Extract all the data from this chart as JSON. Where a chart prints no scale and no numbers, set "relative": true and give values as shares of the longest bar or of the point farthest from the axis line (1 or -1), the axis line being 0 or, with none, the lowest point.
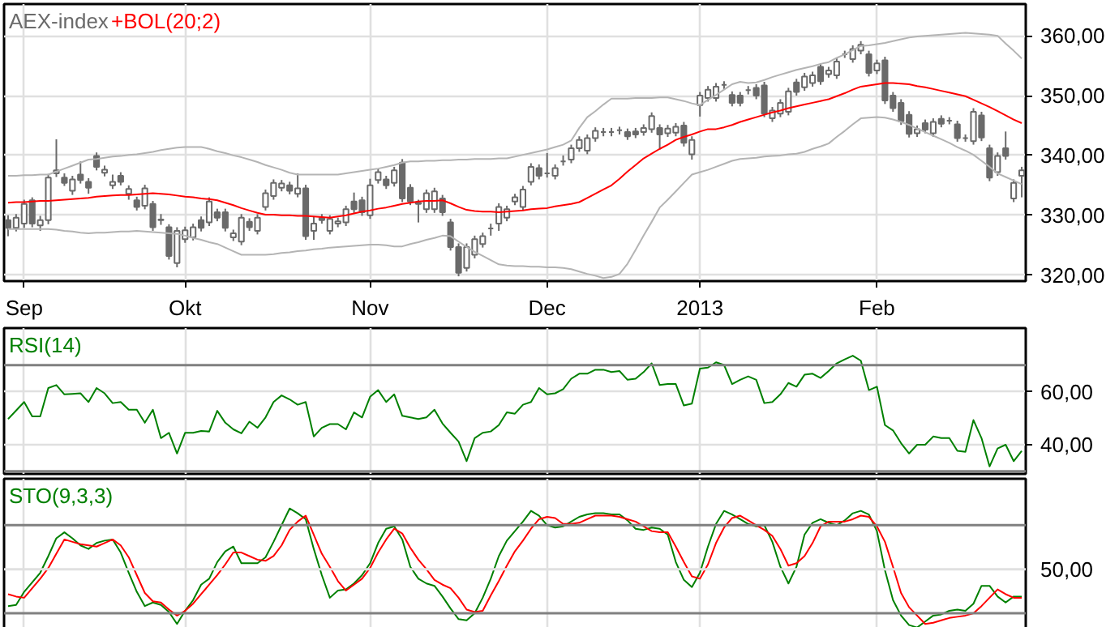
{
  "chart_data": [
    {
      "type": "candlestick",
      "ylim": [
        319,
        365.3
      ],
      "categories": [
        null,
        null,
        "Sep",
        null,
        null,
        null,
        null,
        null,
        null,
        null,
        null,
        null,
        null,
        null,
        null,
        null,
        null,
        null,
        null,
        null,
        null,
        null,
        "Okt",
        null,
        null,
        null,
        null,
        null,
        null,
        null,
        null,
        null,
        null,
        null,
        null,
        null,
        null,
        null,
        null,
        null,
        null,
        null,
        null,
        null,
        null,
        "Nov",
        null,
        null,
        null,
        null,
        null,
        null,
        null,
        null,
        null,
        null,
        null,
        null,
        null,
        null,
        null,
        null,
        null,
        null,
        null,
        null,
        null,
        "Dec",
        null,
        null,
        null,
        null,
        null,
        null,
        null,
        null,
        null,
        null,
        null,
        null,
        null,
        null,
        null,
        null,
        null,
        null,
        "2013",
        null,
        null,
        null,
        null,
        null,
        null,
        null,
        null,
        null,
        null,
        null,
        null,
        null,
        null,
        null,
        null,
        null,
        null,
        null,
        null,
        null,
        "Feb",
        null,
        null,
        null,
        null,
        null,
        null,
        null,
        null,
        null,
        null,
        null,
        null,
        null,
        null,
        null,
        null,
        null,
        null
      ],
      "yticks": [
        {
          "value": 320,
          "label": "320,00"
        },
        {
          "value": 330,
          "label": "330,00"
        },
        {
          "value": 340,
          "label": "340,00"
        },
        {
          "value": 350,
          "label": "350,00"
        },
        {
          "value": 360,
          "label": "360,00"
        }
      ],
      "grid": true,
      "legend": "top left",
      "series": [
        {
          "type": "candlestick",
          "name": "AEX-index",
          "color": "#6a6a6a",
          "ohlc": [
            [
              329.2,
              330.0,
              326.5,
              327.9
            ],
            [
              327.9,
              330.2,
              327.3,
              329.6
            ],
            [
              328.6,
              332.6,
              327.9,
              331.9
            ],
            [
              332.5,
              333.0,
              328.0,
              328.6
            ],
            [
              328.3,
              329.9,
              327.4,
              329.2
            ],
            [
              329.2,
              336.9,
              328.5,
              336.3
            ],
            [
              337.0,
              342.7,
              336.4,
              337.5
            ],
            [
              336.3,
              337.0,
              334.9,
              335.4
            ],
            [
              334.1,
              336.6,
              333.4,
              336.0
            ],
            [
              336.8,
              339.0,
              335.3,
              335.9
            ],
            [
              335.6,
              336.2,
              333.6,
              334.6
            ],
            [
              339.9,
              340.5,
              337.5,
              338.1
            ],
            [
              337.1,
              338.3,
              336.5,
              337.6
            ],
            [
              335.0,
              336.8,
              334.4,
              335.6
            ],
            [
              336.6,
              337.2,
              335.0,
              335.6
            ],
            [
              333.6,
              335.0,
              332.6,
              334.4
            ],
            [
              332.5,
              333.1,
              330.8,
              331.4
            ],
            [
              331.6,
              335.1,
              331.0,
              334.5
            ],
            [
              331.9,
              332.4,
              327.4,
              328.0
            ],
            [
              329.3,
              330.2,
              328.4,
              329.2
            ],
            [
              328.0,
              328.5,
              322.6,
              323.2
            ],
            [
              322.0,
              328.0,
              321.3,
              327.4
            ],
            [
              326.0,
              328.1,
              325.4,
              327.5
            ],
            [
              326.3,
              328.6,
              325.8,
              328.0
            ],
            [
              329.2,
              329.8,
              327.3,
              327.9
            ],
            [
              328.8,
              333.0,
              328.2,
              332.3
            ],
            [
              330.5,
              331.1,
              329.0,
              329.6
            ],
            [
              330.5,
              331.1,
              327.3,
              327.9
            ],
            [
              326.3,
              327.6,
              325.7,
              327.0
            ],
            [
              325.6,
              330.2,
              325.0,
              329.6
            ],
            [
              328.9,
              329.5,
              327.4,
              328.0
            ],
            [
              327.4,
              330.2,
              326.8,
              329.6
            ],
            [
              331.4,
              334.3,
              330.8,
              333.7
            ],
            [
              333.2,
              336.0,
              332.6,
              335.4
            ],
            [
              334.6,
              335.9,
              334.0,
              335.3
            ],
            [
              335.0,
              335.6,
              333.5,
              334.1
            ],
            [
              333.6,
              337.0,
              333.0,
              334.5
            ],
            [
              334.5,
              335.1,
              325.9,
              326.5
            ],
            [
              327.4,
              329.8,
              325.9,
              328.6
            ],
            [
              329.6,
              330.2,
              328.6,
              329.2
            ],
            [
              327.4,
              330.0,
              326.8,
              329.4
            ],
            [
              328.6,
              329.6,
              328.0,
              329.0
            ],
            [
              328.8,
              331.6,
              328.2,
              331.0
            ],
            [
              332.3,
              333.8,
              330.4,
              331.0
            ],
            [
              332.5,
              333.1,
              329.9,
              330.5
            ],
            [
              330.0,
              336.1,
              329.4,
              335.0
            ],
            [
              335.9,
              337.8,
              335.3,
              337.2
            ],
            [
              336.0,
              336.6,
              334.4,
              335.0
            ],
            [
              335.4,
              338.1,
              334.8,
              337.5
            ],
            [
              338.8,
              339.4,
              332.2,
              332.8
            ],
            [
              334.6,
              335.2,
              331.7,
              332.3
            ],
            [
              332.1,
              332.6,
              328.8,
              331.9
            ],
            [
              331.0,
              334.3,
              330.4,
              333.7
            ],
            [
              331.0,
              334.6,
              330.4,
              334.0
            ],
            [
              332.8,
              333.4,
              329.9,
              330.5
            ],
            [
              328.8,
              329.4,
              324.1,
              324.7
            ],
            [
              324.7,
              325.3,
              319.8,
              320.4
            ],
            [
              321.2,
              325.3,
              320.6,
              324.7
            ],
            [
              323.4,
              326.6,
              322.8,
              326.0
            ],
            [
              325.2,
              327.1,
              324.6,
              326.5
            ],
            [
              327.8,
              328.6,
              326.6,
              327.8
            ],
            [
              328.6,
              332.0,
              327.4,
              331.4
            ],
            [
              329.6,
              331.6,
              329.0,
              331.0
            ],
            [
              332.3,
              333.6,
              331.7,
              333.0
            ],
            [
              331.4,
              334.9,
              330.8,
              334.3
            ],
            [
              335.6,
              338.7,
              335.0,
              338.1
            ],
            [
              337.9,
              338.5,
              336.0,
              336.6
            ],
            [
              337.0,
              340.4,
              336.3,
              337.0
            ],
            [
              336.6,
              338.5,
              336.0,
              337.9
            ],
            [
              339.0,
              340.0,
              338.3,
              339.0
            ],
            [
              339.3,
              341.8,
              338.7,
              341.2
            ],
            [
              341.2,
              343.2,
              340.6,
              342.6
            ],
            [
              340.8,
              343.5,
              340.2,
              342.9
            ],
            [
              342.9,
              344.7,
              342.3,
              344.1
            ],
            [
              343.9,
              344.6,
              343.2,
              343.9
            ],
            [
              343.9,
              344.6,
              343.2,
              343.9
            ],
            [
              344.2,
              344.8,
              343.5,
              344.2
            ],
            [
              343.9,
              344.5,
              342.6,
              343.2
            ],
            [
              344.0,
              344.6,
              342.9,
              343.5
            ],
            [
              343.9,
              345.2,
              343.3,
              344.6
            ],
            [
              344.4,
              347.2,
              343.8,
              346.6
            ],
            [
              344.6,
              345.2,
              341.0,
              343.5
            ],
            [
              343.7,
              345.1,
              343.1,
              344.5
            ],
            [
              343.8,
              345.4,
              343.2,
              344.8
            ],
            [
              345.0,
              345.6,
              341.5,
              342.1
            ],
            [
              340.2,
              343.2,
              339.3,
              342.6
            ],
            [
              348.4,
              350.6,
              346.5,
              350.0
            ],
            [
              349.6,
              351.6,
              349.0,
              351.0
            ],
            [
              349.6,
              352.1,
              349.0,
              351.5
            ],
            [
              351.8,
              352.4,
              351.1,
              351.8
            ],
            [
              350.1,
              350.7,
              348.2,
              348.8
            ],
            [
              350.0,
              350.6,
              348.2,
              348.8
            ],
            [
              350.9,
              351.6,
              350.2,
              350.9
            ],
            [
              351.3,
              351.9,
              349.4,
              350.0
            ],
            [
              351.7,
              352.3,
              346.4,
              347.0
            ],
            [
              346.2,
              348.1,
              345.6,
              347.5
            ],
            [
              347.0,
              349.4,
              346.4,
              348.8
            ],
            [
              347.3,
              351.3,
              346.7,
              350.7
            ],
            [
              352.2,
              352.8,
              350.0,
              350.6
            ],
            [
              351.4,
              353.8,
              350.8,
              353.2
            ],
            [
              352.1,
              354.0,
              351.5,
              353.4
            ],
            [
              354.8,
              355.4,
              351.8,
              352.4
            ],
            [
              353.6,
              354.8,
              353.0,
              354.2
            ],
            [
              353.4,
              356.3,
              352.8,
              355.7
            ],
            [
              356.9,
              357.5,
              356.3,
              356.9
            ],
            [
              356.1,
              358.4,
              355.5,
              357.8
            ],
            [
              357.5,
              359.1,
              356.9,
              358.5
            ],
            [
              356.9,
              357.5,
              353.2,
              353.8
            ],
            [
              354.2,
              356.0,
              353.6,
              355.4
            ],
            [
              355.9,
              356.5,
              348.6,
              349.2
            ],
            [
              350.0,
              350.6,
              347.3,
              347.9
            ],
            [
              348.8,
              349.4,
              345.1,
              345.7
            ],
            [
              346.8,
              347.4,
              343.0,
              343.6
            ],
            [
              343.7,
              345.0,
              343.1,
              344.4
            ],
            [
              345.4,
              346.0,
              343.7,
              344.3
            ],
            [
              343.7,
              346.2,
              343.1,
              345.6
            ],
            [
              346.1,
              346.7,
              344.7,
              345.3
            ],
            [
              345.8,
              346.4,
              345.2,
              345.8
            ],
            [
              345.2,
              345.8,
              342.3,
              342.9
            ],
            [
              342.9,
              343.5,
              342.3,
              342.9
            ],
            [
              342.4,
              347.9,
              341.8,
              347.3
            ],
            [
              346.7,
              347.3,
              342.4,
              343.0
            ],
            [
              341.2,
              341.8,
              335.7,
              336.3
            ],
            [
              337.2,
              340.5,
              336.6,
              339.9
            ],
            [
              341.2,
              344.0,
              339.3,
              339.9
            ],
            [
              332.8,
              336.0,
              332.2,
              335.4
            ],
            [
              336.6,
              338.1,
              333.0,
              337.5
            ]
          ]
        },
        {
          "type": "line",
          "color": "#b4b4b4",
          "values": [
            336.6,
            336.6,
            336.7,
            336.7,
            336.8,
            336.8,
            337.3,
            337.8,
            338.3,
            338.8,
            339.3,
            339.4,
            339.6,
            339.8,
            339.9,
            340.1,
            340.2,
            340.4,
            340.6,
            340.9,
            341.1,
            341.3,
            341.4,
            341.4,
            341.4,
            341.1,
            340.7,
            340.4,
            340.0,
            339.7,
            339.3,
            338.9,
            338.4,
            338.0,
            337.6,
            337.1,
            336.8,
            336.8,
            336.8,
            336.8,
            336.8,
            336.8,
            337.0,
            337.2,
            337.4,
            337.6,
            337.8,
            338.1,
            338.4,
            338.8,
            339.0,
            339.0,
            339.1,
            339.1,
            339.2,
            339.2,
            339.3,
            339.3,
            339.4,
            339.4,
            339.4,
            339.5,
            339.5,
            339.8,
            340.1,
            340.4,
            340.7,
            341.0,
            341.4,
            341.8,
            342.5,
            344.6,
            346.4,
            347.4,
            348.5,
            349.5,
            349.5,
            349.5,
            349.6,
            349.6,
            349.6,
            349.7,
            349.7,
            349.4,
            349.1,
            348.7,
            348.4,
            349.3,
            350.1,
            351.0,
            351.9,
            352.3,
            352.1,
            352.2,
            352.6,
            353.1,
            353.5,
            353.9,
            354.3,
            354.6,
            354.9,
            355.3,
            355.6,
            356.3,
            356.9,
            357.6,
            358.3,
            358.4,
            358.6,
            358.8,
            359.1,
            359.4,
            359.7,
            359.9,
            360.0,
            360.1,
            360.2,
            360.3,
            360.4,
            360.5,
            360.4,
            360.3,
            360.2,
            360.0,
            358.7,
            357.5,
            356.2
          ]
        },
        {
          "type": "line",
          "name": "+BOL(20;2)",
          "color": "#ff0000",
          "values": [
            332.1,
            332.2,
            332.2,
            332.3,
            332.4,
            332.4,
            332.5,
            332.6,
            332.7,
            332.8,
            332.9,
            333.1,
            333.2,
            333.3,
            333.4,
            333.4,
            333.5,
            333.6,
            333.7,
            333.6,
            333.5,
            333.3,
            333.1,
            333.0,
            332.8,
            332.7,
            332.5,
            332.1,
            331.7,
            331.2,
            330.8,
            330.4,
            330.1,
            330.1,
            330.0,
            330.0,
            329.9,
            329.9,
            329.8,
            329.7,
            329.6,
            329.8,
            330.0,
            330.3,
            330.6,
            330.8,
            331.1,
            331.3,
            331.6,
            331.9,
            332.1,
            332.3,
            332.4,
            332.4,
            332.5,
            332.0,
            331.4,
            330.9,
            330.7,
            330.6,
            330.6,
            330.5,
            330.6,
            330.7,
            330.8,
            331.0,
            331.1,
            331.2,
            331.5,
            331.7,
            331.9,
            332.2,
            332.9,
            333.6,
            334.3,
            335.0,
            336.1,
            337.3,
            338.4,
            339.5,
            340.3,
            341.1,
            341.8,
            342.6,
            343.1,
            343.5,
            344.0,
            344.4,
            344.4,
            344.7,
            345.1,
            345.6,
            346.0,
            346.4,
            346.8,
            347.2,
            347.5,
            347.9,
            348.2,
            348.5,
            348.8,
            349.1,
            349.4,
            349.9,
            350.4,
            351.0,
            351.5,
            351.7,
            351.9,
            352.1,
            352.1,
            352.0,
            351.9,
            351.6,
            351.4,
            351.1,
            350.8,
            350.5,
            350.2,
            349.9,
            349.3,
            348.7,
            348.1,
            347.4,
            346.7,
            346.0,
            345.4
          ]
        },
        {
          "type": "line",
          "color": "#b4b4b4",
          "values": [
            327.7,
            327.7,
            327.7,
            327.7,
            327.7,
            327.7,
            327.6,
            327.4,
            327.3,
            327.1,
            327.0,
            327.1,
            327.1,
            327.2,
            327.3,
            327.3,
            327.4,
            327.3,
            327.2,
            327.1,
            327.0,
            326.9,
            326.6,
            326.2,
            325.9,
            325.5,
            325.2,
            324.6,
            324.0,
            323.4,
            323.4,
            323.4,
            323.4,
            323.5,
            323.7,
            323.8,
            324.0,
            324.1,
            324.3,
            324.4,
            324.6,
            324.7,
            324.8,
            324.9,
            325.0,
            325.1,
            325.1,
            325.0,
            324.8,
            324.8,
            325.2,
            325.5,
            325.9,
            326.2,
            326.6,
            326.5,
            325.6,
            324.7,
            323.9,
            323.2,
            322.5,
            321.8,
            321.6,
            321.5,
            321.5,
            321.4,
            321.4,
            321.3,
            321.3,
            321.2,
            321.0,
            320.6,
            320.2,
            319.9,
            319.5,
            319.7,
            320.2,
            321.9,
            324.2,
            326.6,
            328.9,
            331.3,
            332.6,
            334.0,
            335.4,
            336.8,
            337.2,
            337.6,
            338.1,
            338.6,
            339.1,
            339.4,
            339.5,
            339.6,
            339.8,
            339.9,
            340.0,
            340.2,
            340.3,
            340.6,
            341.1,
            341.5,
            342.0,
            343.1,
            344.1,
            345.2,
            346.2,
            346.3,
            346.4,
            346.3,
            346.0,
            345.6,
            345.1,
            344.5,
            343.9,
            343.3,
            342.7,
            342.1,
            341.4,
            340.8,
            340.1,
            339.1,
            338.1,
            337.0,
            336.4,
            335.8,
            335.2
          ]
        }
      ]
    },
    {
      "type": "line",
      "ylim": [
        29,
        84
      ],
      "tick_labels": "y",
      "categories": [
        null,
        null,
        null,
        null,
        null,
        null,
        null,
        null,
        null,
        null,
        null,
        null,
        null,
        null,
        null,
        null,
        null,
        null,
        null,
        null,
        null,
        null,
        null,
        null,
        null,
        null,
        null,
        null,
        null,
        null,
        null,
        null,
        null,
        null,
        null,
        null,
        null,
        null,
        null,
        null,
        null,
        null,
        null,
        null,
        null,
        null,
        null,
        null,
        null,
        null,
        null,
        null,
        null,
        null,
        null,
        null,
        null,
        null,
        null,
        null,
        null,
        null,
        null,
        null,
        null,
        null,
        null,
        null,
        null,
        null,
        null,
        null,
        null,
        null,
        null,
        null,
        null,
        null,
        null,
        null,
        null,
        null,
        null,
        null,
        null,
        null,
        null,
        null,
        null,
        null,
        null,
        null,
        null,
        null,
        null,
        null,
        null,
        null,
        null,
        null,
        null,
        null,
        null,
        null,
        null,
        null,
        null,
        null,
        null,
        null,
        null,
        null,
        null,
        null,
        null,
        null,
        null,
        null,
        null,
        null,
        null,
        null,
        null,
        null,
        null,
        null,
        null
      ],
      "yticks": [
        {
          "value": 40,
          "label": "40,00"
        },
        {
          "value": 60,
          "label": "60,00"
        }
      ],
      "grid": true,
      "legend": "top left",
      "ref_lines": [
        {
          "axis": "y",
          "value": 70,
          "color": "#808080"
        },
        {
          "axis": "y",
          "value": 30,
          "color": "#808080"
        }
      ],
      "series": [
        {
          "name": "RSI(14)",
          "color": "#008000",
          "values": [
            49.7,
            52.9,
            56.1,
            50.7,
            50.7,
            61.4,
            62.5,
            59.0,
            59.2,
            59.4,
            56.1,
            61.4,
            59.4,
            55.7,
            56.1,
            53.2,
            53.2,
            48.3,
            53.2,
            42.5,
            44.5,
            36.7,
            44.5,
            44.5,
            45.2,
            45.0,
            52.8,
            48.3,
            45.8,
            44.3,
            48.7,
            46.4,
            50.3,
            56.1,
            58.6,
            57.1,
            55.1,
            56.1,
            43.1,
            46.4,
            47.8,
            47.8,
            45.8,
            52.2,
            50.3,
            58.1,
            60.6,
            56.1,
            59.0,
            50.9,
            50.3,
            49.7,
            50.3,
            53.2,
            48.0,
            44.5,
            41.2,
            33.8,
            42.5,
            44.5,
            45.0,
            47.4,
            52.2,
            51.7,
            55.1,
            56.1,
            61.4,
            59.0,
            59.4,
            61.0,
            64.9,
            66.8,
            66.8,
            68.3,
            68.3,
            67.4,
            67.8,
            64.5,
            64.9,
            67.4,
            70.7,
            62.5,
            62.9,
            62.9,
            54.8,
            55.5,
            68.7,
            69.1,
            71.1,
            70.1,
            62.9,
            64.5,
            65.8,
            64.5,
            55.7,
            56.1,
            59.0,
            63.3,
            61.9,
            66.4,
            66.8,
            65.2,
            67.8,
            70.7,
            72.2,
            73.6,
            71.7,
            60.6,
            61.9,
            47.4,
            45.4,
            40.6,
            36.7,
            40.0,
            40.0,
            43.1,
            42.5,
            42.5,
            37.7,
            37.3,
            49.3,
            42.5,
            31.8,
            38.6,
            40.0,
            33.8,
            37.7
          ]
        }
      ]
    },
    {
      "type": "line",
      "relative": true,
      "tick_labels": false,
      "categories": [
        null,
        null,
        null,
        null,
        null,
        null,
        null,
        null,
        null,
        null,
        null,
        null,
        null,
        null,
        null,
        null,
        null,
        null,
        null,
        null,
        null,
        null,
        null,
        null,
        null,
        null,
        null,
        null,
        null,
        null,
        null,
        null,
        null,
        null,
        null,
        null,
        null,
        null,
        null,
        null,
        null,
        null,
        null,
        null,
        null,
        null,
        null,
        null,
        null,
        null,
        null,
        null,
        null,
        null,
        null,
        null,
        null,
        null,
        null,
        null,
        null,
        null,
        null,
        null,
        null,
        null,
        null,
        null,
        null,
        null,
        null,
        null,
        null,
        null,
        null,
        null,
        null,
        null,
        null,
        null,
        null,
        null,
        null,
        null,
        null,
        null,
        null,
        null,
        null,
        null,
        null,
        null,
        null,
        null,
        null,
        null,
        null,
        null,
        null,
        null,
        null,
        null,
        null,
        null,
        null,
        null,
        null,
        null,
        null,
        null,
        null,
        null,
        null,
        null,
        null,
        null,
        null,
        null,
        null,
        null,
        null,
        null,
        null,
        null,
        null,
        null,
        null
      ],
      "grid": "x",
      "legend": "top left",
      "annotations": [
        "50,00"
      ],
      "ref_lines": [
        {
          "axis": "y",
          "value": 0.86,
          "color": "#808080"
        },
        {
          "axis": "y",
          "value": 0.49,
          "color": "#e0e0e0"
        },
        {
          "axis": "y",
          "value": 0.12,
          "color": "#808080"
        }
      ],
      "series": [
        {
          "name": "STO(9,3,3)",
          "color": "#008000",
          "values": [
            0.18,
            0.19,
            0.3,
            0.38,
            0.46,
            0.6,
            0.75,
            0.8,
            0.75,
            0.69,
            0.66,
            0.71,
            0.73,
            0.74,
            0.63,
            0.46,
            0.3,
            0.18,
            0.21,
            0.19,
            0.13,
            0.03,
            0.14,
            0.23,
            0.36,
            0.41,
            0.55,
            0.64,
            0.68,
            0.54,
            0.54,
            0.54,
            0.59,
            0.72,
            0.86,
            1.0,
            0.96,
            0.91,
            0.66,
            0.44,
            0.25,
            0.31,
            0.32,
            0.37,
            0.44,
            0.54,
            0.71,
            0.83,
            0.85,
            0.74,
            0.51,
            0.41,
            0.37,
            0.35,
            0.26,
            0.16,
            0.07,
            0.06,
            0.12,
            0.25,
            0.41,
            0.6,
            0.73,
            0.81,
            0.89,
            0.98,
            0.94,
            0.86,
            0.84,
            0.85,
            0.89,
            0.93,
            0.95,
            0.96,
            0.96,
            0.95,
            0.95,
            0.9,
            0.83,
            0.82,
            0.84,
            0.83,
            0.78,
            0.55,
            0.4,
            0.34,
            0.46,
            0.68,
            0.87,
            0.98,
            0.95,
            0.91,
            0.87,
            0.85,
            0.86,
            0.72,
            0.51,
            0.37,
            0.51,
            0.78,
            0.88,
            0.91,
            0.88,
            0.86,
            0.9,
            0.96,
            0.98,
            0.95,
            0.81,
            0.48,
            0.23,
            0.1,
            0.02,
            0.0,
            0.05,
            0.1,
            0.11,
            0.14,
            0.15,
            0.14,
            0.2,
            0.35,
            0.35,
            0.26,
            0.21,
            0.26,
            0.26
          ]
        },
        {
          "color": "#ff0000",
          "values": [
            0.28,
            0.26,
            0.25,
            0.33,
            0.41,
            0.5,
            0.62,
            0.74,
            0.72,
            0.7,
            0.69,
            0.68,
            0.71,
            0.74,
            0.69,
            0.59,
            0.44,
            0.29,
            0.22,
            0.21,
            0.15,
            0.1,
            0.14,
            0.2,
            0.28,
            0.36,
            0.44,
            0.53,
            0.63,
            0.63,
            0.6,
            0.57,
            0.56,
            0.6,
            0.69,
            0.82,
            0.89,
            0.94,
            0.78,
            0.62,
            0.51,
            0.39,
            0.31,
            0.36,
            0.41,
            0.5,
            0.63,
            0.74,
            0.83,
            0.79,
            0.67,
            0.57,
            0.49,
            0.4,
            0.36,
            0.33,
            0.25,
            0.15,
            0.13,
            0.14,
            0.27,
            0.39,
            0.52,
            0.64,
            0.73,
            0.83,
            0.91,
            0.93,
            0.92,
            0.87,
            0.87,
            0.88,
            0.91,
            0.94,
            0.94,
            0.94,
            0.93,
            0.91,
            0.89,
            0.85,
            0.81,
            0.8,
            0.8,
            0.68,
            0.55,
            0.43,
            0.41,
            0.53,
            0.71,
            0.84,
            0.92,
            0.94,
            0.9,
            0.86,
            0.82,
            0.77,
            0.66,
            0.52,
            0.54,
            0.6,
            0.71,
            0.85,
            0.89,
            0.89,
            0.89,
            0.91,
            0.94,
            0.93,
            0.85,
            0.72,
            0.51,
            0.29,
            0.17,
            0.1,
            0.03,
            0.04,
            0.06,
            0.08,
            0.09,
            0.1,
            0.12,
            0.18,
            0.25,
            0.32,
            0.28,
            0.25,
            0.25
          ]
        }
      ]
    }
  ]
}
